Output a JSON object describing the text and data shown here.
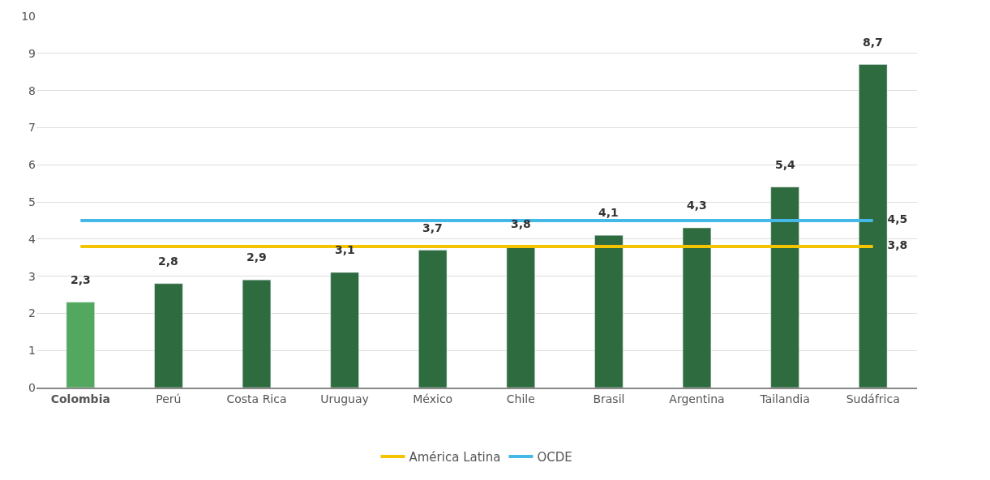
{
  "chart_data": {
    "type": "bar",
    "categories": [
      "Colombia",
      "Perú",
      "Costa Rica",
      "Uruguay",
      "México",
      "Chile",
      "Brasil",
      "Argentina",
      "Tailandia",
      "Sudáfrica"
    ],
    "series": [
      {
        "colors": [
          "#52a85f",
          "#2e6b3e",
          "#2e6b3e",
          "#2e6b3e",
          "#2e6b3e",
          "#2e6b3e",
          "#2e6b3e",
          "#2e6b3e",
          "#2e6b3e",
          "#2e6b3e"
        ],
        "values": [
          2.3,
          2.8,
          2.9,
          3.1,
          3.7,
          3.8,
          4.1,
          4.3,
          5.4,
          8.7
        ],
        "value_labels": [
          "2,3",
          "2,8",
          "2,9",
          "3,1",
          "3,7",
          "3,8",
          "4,1",
          "4,3",
          "5,4",
          "8,7"
        ]
      },
      {
        "type": "line",
        "name": "América Latina",
        "color": "#f5c400",
        "values": [
          3.8,
          3.8,
          3.8,
          3.8,
          3.8,
          3.8,
          3.8,
          3.8,
          3.8,
          3.8
        ],
        "value_labels": [
          null,
          null,
          null,
          null,
          null,
          null,
          null,
          null,
          null,
          "3,8"
        ]
      },
      {
        "type": "line",
        "name": "OCDE",
        "color": "#44b8e6",
        "values": [
          4.5,
          4.5,
          4.5,
          4.5,
          4.5,
          4.5,
          4.5,
          4.5,
          4.5,
          4.5
        ],
        "value_labels": [
          null,
          null,
          null,
          null,
          null,
          null,
          null,
          null,
          null,
          "4,5"
        ]
      }
    ],
    "ylim": [
      0,
      10
    ],
    "yticks": [
      0,
      1,
      2,
      3,
      4,
      5,
      6,
      7,
      8,
      9,
      10
    ],
    "grid": "y",
    "legend": "bottom",
    "marker": "none"
  }
}
